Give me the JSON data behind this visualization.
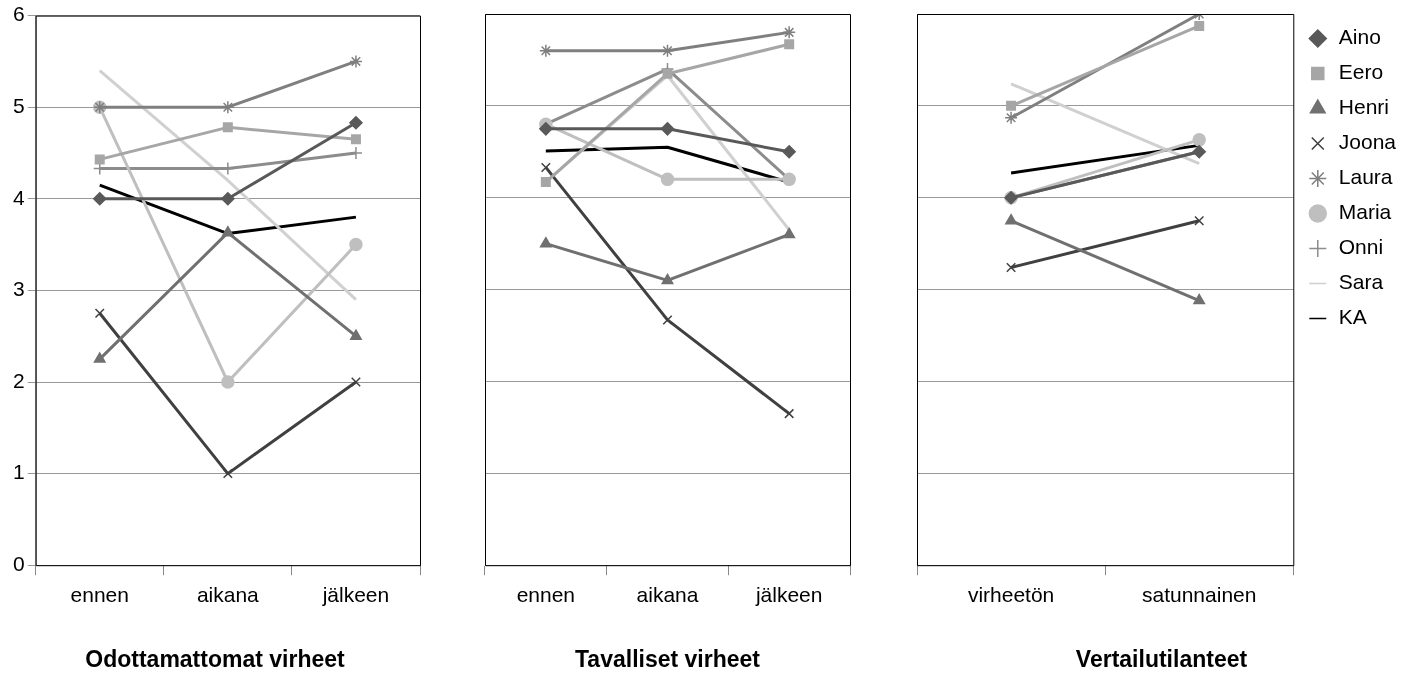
{
  "chart_data": [
    {
      "type": "line",
      "title": "Odottamattomat virheet",
      "categories": [
        "ennen",
        "aikana",
        "jälkeen"
      ],
      "ylim": [
        0,
        6
      ],
      "yticks": [
        0,
        1,
        2,
        3,
        4,
        5,
        6
      ],
      "grid": "y",
      "legend": false,
      "series": [
        {
          "color": "#595959",
          "marker": "diamond",
          "values": [
            4,
            4,
            4.83
          ]
        },
        {
          "color": "#a6a6a6",
          "marker": "square",
          "values": [
            4.43,
            4.78,
            4.65
          ]
        },
        {
          "color": "#707070",
          "marker": "triangle",
          "values": [
            2.25,
            3.63,
            2.5
          ]
        },
        {
          "color": "#404040",
          "marker": "x",
          "values": [
            2.75,
            1,
            2
          ]
        },
        {
          "color": "#7f7f7f",
          "marker": "cross",
          "values": [
            5,
            5,
            5.5
          ]
        },
        {
          "color": "#bfbfbf",
          "marker": "circle",
          "values": [
            5,
            2,
            3.5
          ]
        },
        {
          "color": "#8c8c8c",
          "marker": "plus",
          "values": [
            4.33,
            4.33,
            4.5
          ]
        },
        {
          "color": "#d0d0d0",
          "marker": "none",
          "values": [
            5.4,
            4.2,
            2.9
          ]
        },
        {
          "color": "#000000",
          "marker": "none",
          "values": [
            4.15,
            3.62,
            3.8
          ]
        }
      ]
    },
    {
      "type": "line",
      "title": "Tavalliset virheet",
      "categories": [
        "ennen",
        "aikana",
        "jälkeen"
      ],
      "ylim": [
        0,
        6
      ],
      "yticks": [
        0,
        1,
        2,
        3,
        4,
        5,
        6
      ],
      "grid": "y",
      "legend": false,
      "tick_labels": "x",
      "series": [
        {
          "color": "#595959",
          "marker": "diamond",
          "values": [
            4.75,
            4.75,
            4.5
          ]
        },
        {
          "color": "#a6a6a6",
          "marker": "square",
          "values": [
            4.17,
            5.35,
            5.67
          ]
        },
        {
          "color": "#707070",
          "marker": "triangle",
          "values": [
            3.5,
            3.1,
            3.6
          ]
        },
        {
          "color": "#404040",
          "marker": "x",
          "values": [
            4.33,
            2.67,
            1.65
          ]
        },
        {
          "color": "#7f7f7f",
          "marker": "cross",
          "values": [
            5.6,
            5.6,
            5.8
          ]
        },
        {
          "color": "#bfbfbf",
          "marker": "circle",
          "values": [
            4.8,
            4.2,
            4.2
          ]
        },
        {
          "color": "#8c8c8c",
          "marker": "plus",
          "values": [
            4.8,
            5.4,
            4.2
          ]
        },
        {
          "color": "#d0d0d0",
          "marker": "none",
          "values": [
            4.17,
            5.33,
            3.65
          ]
        },
        {
          "color": "#000000",
          "marker": "none",
          "values": [
            4.51,
            4.55,
            4.17
          ]
        }
      ]
    },
    {
      "type": "line",
      "title": "Vertailutilanteet",
      "categories": [
        "virheetön",
        "satunnainen"
      ],
      "ylim": [
        0,
        6
      ],
      "yticks": [
        0,
        1,
        2,
        3,
        4,
        5,
        6
      ],
      "grid": "y",
      "legend": "right",
      "tick_labels": "x",
      "series": [
        {
          "name": "Aino",
          "color": "#595959",
          "marker": "diamond",
          "values": [
            4,
            4.5
          ]
        },
        {
          "name": "Eero",
          "color": "#a6a6a6",
          "marker": "square",
          "values": [
            5,
            5.87
          ]
        },
        {
          "name": "Henri",
          "color": "#707070",
          "marker": "triangle",
          "values": [
            3.75,
            2.88
          ]
        },
        {
          "name": "Joona",
          "color": "#404040",
          "marker": "x",
          "values": [
            3.24,
            3.75
          ]
        },
        {
          "name": "Laura",
          "color": "#7f7f7f",
          "marker": "cross",
          "values": [
            4.87,
            6
          ]
        },
        {
          "name": "Maria",
          "color": "#bfbfbf",
          "marker": "circle",
          "values": [
            4,
            4.63
          ]
        },
        {
          "name": "Onni",
          "color": "#8c8c8c",
          "marker": "plus",
          "values": [
            4,
            4.5
          ]
        },
        {
          "name": "Sara",
          "color": "#d0d0d0",
          "marker": "none",
          "values": [
            5.24,
            4.37
          ]
        },
        {
          "name": "KA",
          "color": "#000000",
          "marker": "none",
          "values": [
            4.27,
            4.57
          ]
        }
      ]
    }
  ]
}
